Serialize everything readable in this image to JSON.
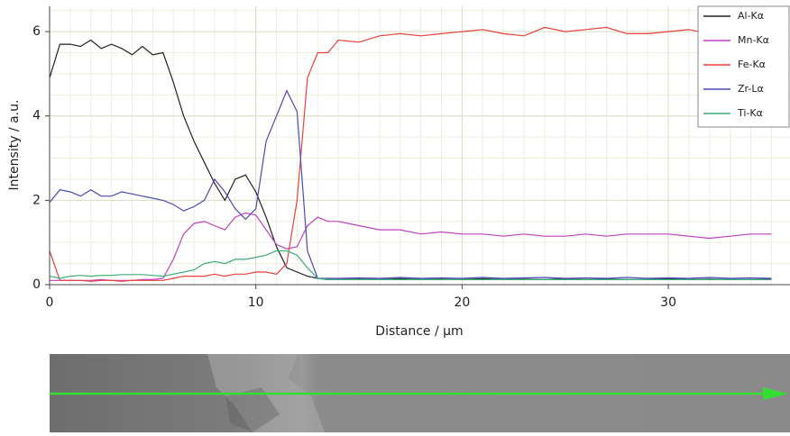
{
  "chart_data": {
    "type": "line",
    "xlabel": "Distance / µm",
    "ylabel": "Intensity / a.u.",
    "x": [
      0,
      0.5,
      1,
      1.5,
      2,
      2.5,
      3,
      3.5,
      4,
      4.5,
      5,
      5.5,
      6,
      6.5,
      7,
      7.5,
      8,
      8.5,
      9,
      9.5,
      10,
      10.5,
      11,
      11.5,
      12,
      12.5,
      13,
      13.5,
      14,
      15,
      16,
      17,
      18,
      19,
      20,
      21,
      22,
      23,
      24,
      25,
      26,
      27,
      28,
      29,
      30,
      31,
      32,
      33,
      34,
      35
    ],
    "series": [
      {
        "name": "Al-Kα",
        "color": "#222222",
        "values": [
          4.9,
          5.7,
          5.7,
          5.65,
          5.8,
          5.6,
          5.7,
          5.6,
          5.45,
          5.65,
          5.45,
          5.5,
          4.8,
          4.0,
          3.4,
          2.9,
          2.4,
          2.0,
          2.5,
          2.6,
          2.2,
          1.6,
          0.9,
          0.4,
          0.3,
          0.2,
          0.15,
          0.12,
          0.12,
          0.13,
          0.12,
          0.14,
          0.12,
          0.13,
          0.12,
          0.14,
          0.12,
          0.13,
          0.12,
          0.14,
          0.12,
          0.13,
          0.12,
          0.12,
          0.14,
          0.12,
          0.13,
          0.12,
          0.12,
          0.13
        ]
      },
      {
        "name": "Mn-Kα",
        "color": "#c040c0",
        "values": [
          0.1,
          0.1,
          0.1,
          0.1,
          0.1,
          0.12,
          0.1,
          0.1,
          0.1,
          0.12,
          0.12,
          0.15,
          0.6,
          1.2,
          1.45,
          1.5,
          1.4,
          1.3,
          1.6,
          1.7,
          1.65,
          1.3,
          0.95,
          0.85,
          0.9,
          1.4,
          1.6,
          1.5,
          1.5,
          1.4,
          1.3,
          1.3,
          1.2,
          1.25,
          1.2,
          1.2,
          1.15,
          1.2,
          1.15,
          1.15,
          1.2,
          1.15,
          1.2,
          1.2,
          1.2,
          1.15,
          1.1,
          1.15,
          1.2,
          1.2
        ]
      },
      {
        "name": "Fe-Kα",
        "color": "#e8413c",
        "values": [
          0.8,
          0.1,
          0.1,
          0.1,
          0.08,
          0.1,
          0.1,
          0.08,
          0.1,
          0.1,
          0.1,
          0.1,
          0.15,
          0.2,
          0.2,
          0.2,
          0.25,
          0.2,
          0.25,
          0.25,
          0.3,
          0.3,
          0.25,
          0.5,
          2.0,
          4.9,
          5.5,
          5.5,
          5.8,
          5.75,
          5.9,
          5.95,
          5.9,
          5.95,
          6.0,
          6.05,
          5.95,
          5.9,
          6.1,
          6.0,
          6.05,
          6.1,
          5.95,
          5.95,
          6.0,
          6.05,
          5.95,
          6.0,
          5.95,
          6.05
        ]
      },
      {
        "name": "Zr-Lα",
        "color": "#4a4ab8",
        "values": [
          1.95,
          2.25,
          2.2,
          2.1,
          2.25,
          2.1,
          2.1,
          2.2,
          2.15,
          2.1,
          2.05,
          2.0,
          1.9,
          1.75,
          1.85,
          2.0,
          2.5,
          2.2,
          1.8,
          1.55,
          1.8,
          3.4,
          4.0,
          4.6,
          4.1,
          0.8,
          0.15,
          0.15,
          0.15,
          0.16,
          0.15,
          0.17,
          0.15,
          0.16,
          0.15,
          0.17,
          0.15,
          0.16,
          0.17,
          0.15,
          0.16,
          0.15,
          0.17,
          0.15,
          0.16,
          0.15,
          0.17,
          0.15,
          0.16,
          0.15
        ]
      },
      {
        "name": "Ti-Kα",
        "color": "#3cab7a",
        "values": [
          0.2,
          0.15,
          0.2,
          0.22,
          0.2,
          0.22,
          0.22,
          0.24,
          0.24,
          0.24,
          0.22,
          0.2,
          0.25,
          0.3,
          0.35,
          0.5,
          0.55,
          0.5,
          0.6,
          0.6,
          0.65,
          0.7,
          0.8,
          0.8,
          0.7,
          0.4,
          0.15,
          0.12,
          0.12,
          0.12,
          0.12,
          0.12,
          0.12,
          0.12,
          0.12,
          0.12,
          0.12,
          0.12,
          0.12,
          0.12,
          0.12,
          0.12,
          0.12,
          0.12,
          0.12,
          0.12,
          0.12,
          0.12,
          0.12,
          0.12
        ]
      }
    ],
    "xlim": [
      0,
      35.9
    ],
    "ylim": [
      0,
      6.6
    ],
    "xticks": [
      0,
      10,
      20,
      30
    ],
    "yticks": [
      0,
      2,
      4,
      6
    ],
    "grid": true,
    "minor_grid": true,
    "legend": "upper right"
  }
}
